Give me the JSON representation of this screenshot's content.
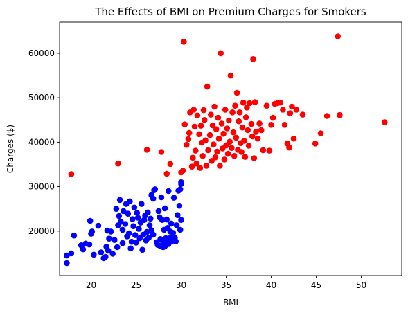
{
  "chart_data": {
    "type": "scatter",
    "title": "The Effects of BMI on Premium Charges for Smokers",
    "xlabel": "BMI",
    "ylabel": "Charges ($)",
    "xlim": [
      16.5,
      54.5
    ],
    "ylim": [
      10000,
      67000
    ],
    "grid": false,
    "colors": {
      "low_bmi": "#0000ff",
      "high_bmi": "#ff0000"
    },
    "x_ticks": [
      20,
      25,
      30,
      35,
      40,
      45,
      50
    ],
    "x_tick_labels": [
      "20",
      "25",
      "30",
      "35",
      "40",
      "45",
      "50"
    ],
    "y_ticks": [
      20000,
      30000,
      40000,
      50000,
      60000
    ],
    "y_tick_labels": [
      "20000",
      "30000",
      "40000",
      "50000",
      "60000"
    ],
    "series": [
      {
        "color": "#0000ff",
        "points": [
          [
            17.3,
            14500
          ],
          [
            17.3,
            12800
          ],
          [
            17.8,
            15000
          ],
          [
            18.1,
            19000
          ],
          [
            18.9,
            16800
          ],
          [
            19.1,
            15900
          ],
          [
            19.4,
            17200
          ],
          [
            19.8,
            17000
          ],
          [
            19.9,
            22300
          ],
          [
            20.0,
            19400
          ],
          [
            20.1,
            19900
          ],
          [
            20.3,
            14700
          ],
          [
            20.8,
            21200
          ],
          [
            21.1,
            15200
          ],
          [
            21.4,
            13900
          ],
          [
            21.6,
            14200
          ],
          [
            21.7,
            16500
          ],
          [
            21.8,
            20100
          ],
          [
            21.9,
            15600
          ],
          [
            22.0,
            18300
          ],
          [
            22.2,
            19900
          ],
          [
            22.4,
            14900
          ],
          [
            22.6,
            18000
          ],
          [
            22.8,
            25000
          ],
          [
            22.9,
            16400
          ],
          [
            23.0,
            21300
          ],
          [
            23.1,
            23400
          ],
          [
            23.2,
            27000
          ],
          [
            23.3,
            22100
          ],
          [
            23.5,
            20300
          ],
          [
            23.5,
            17300
          ],
          [
            23.6,
            24500
          ],
          [
            23.8,
            21600
          ],
          [
            23.9,
            26100
          ],
          [
            24.0,
            18800
          ],
          [
            24.1,
            23900
          ],
          [
            24.2,
            19500
          ],
          [
            24.3,
            26700
          ],
          [
            24.4,
            16100
          ],
          [
            24.5,
            17600
          ],
          [
            24.6,
            22700
          ],
          [
            24.7,
            21100
          ],
          [
            24.8,
            25300
          ],
          [
            24.9,
            19100
          ],
          [
            25.0,
            17400
          ],
          [
            25.1,
            24100
          ],
          [
            25.2,
            23000
          ],
          [
            25.3,
            20500
          ],
          [
            25.4,
            18400
          ],
          [
            25.5,
            21900
          ],
          [
            25.6,
            26100
          ],
          [
            25.7,
            15800
          ],
          [
            25.8,
            19200
          ],
          [
            25.9,
            22500
          ],
          [
            26.0,
            23500
          ],
          [
            26.1,
            17900
          ],
          [
            26.2,
            19800
          ],
          [
            26.3,
            24200
          ],
          [
            26.4,
            18500
          ],
          [
            26.5,
            21300
          ],
          [
            26.6,
            22800
          ],
          [
            26.7,
            20200
          ],
          [
            26.9,
            19200
          ],
          [
            26.7,
            28100
          ],
          [
            26.9,
            27300
          ],
          [
            27.0,
            29200
          ],
          [
            27.1,
            29400
          ],
          [
            27.3,
            17500
          ],
          [
            27.4,
            16900
          ],
          [
            27.5,
            24500
          ],
          [
            27.6,
            23100
          ],
          [
            27.7,
            18200
          ],
          [
            27.8,
            27600
          ],
          [
            27.9,
            22500
          ],
          [
            28.0,
            17300
          ],
          [
            28.1,
            20300
          ],
          [
            28.2,
            25100
          ],
          [
            28.3,
            18400
          ],
          [
            28.4,
            22600
          ],
          [
            28.5,
            20700
          ],
          [
            28.6,
            29000
          ],
          [
            28.7,
            17700
          ],
          [
            28.8,
            19900
          ],
          [
            28.9,
            21700
          ],
          [
            27.7,
            16600
          ],
          [
            28.0,
            16400
          ],
          [
            28.2,
            16600
          ],
          [
            28.4,
            17300
          ],
          [
            28.6,
            17100
          ],
          [
            28.8,
            18500
          ],
          [
            29.0,
            17800
          ],
          [
            29.1,
            19600
          ],
          [
            29.2,
            27500
          ],
          [
            29.3,
            18500
          ],
          [
            29.4,
            17700
          ],
          [
            29.5,
            21300
          ],
          [
            29.6,
            23600
          ],
          [
            29.7,
            29100
          ],
          [
            29.8,
            25700
          ],
          [
            29.9,
            29400
          ],
          [
            30.0,
            30600
          ],
          [
            30.0,
            22500
          ],
          [
            29.9,
            20300
          ],
          [
            30.0,
            31000
          ]
        ]
      },
      {
        "color": "#ff0000",
        "points": [
          [
            17.8,
            32800
          ],
          [
            23.0,
            35200
          ],
          [
            26.2,
            38300
          ],
          [
            27.8,
            37800
          ],
          [
            28.4,
            32900
          ],
          [
            28.8,
            35100
          ],
          [
            30.0,
            33200
          ],
          [
            30.2,
            33600
          ],
          [
            30.3,
            62600
          ],
          [
            30.4,
            44000
          ],
          [
            30.6,
            39400
          ],
          [
            30.8,
            40700
          ],
          [
            30.9,
            42100
          ],
          [
            31.0,
            46700
          ],
          [
            31.2,
            34500
          ],
          [
            31.3,
            36500
          ],
          [
            31.4,
            47300
          ],
          [
            31.5,
            43500
          ],
          [
            31.6,
            38100
          ],
          [
            31.7,
            35200
          ],
          [
            31.8,
            46000
          ],
          [
            32.0,
            41800
          ],
          [
            32.1,
            34200
          ],
          [
            32.2,
            43700
          ],
          [
            32.3,
            39900
          ],
          [
            32.4,
            36900
          ],
          [
            32.5,
            47200
          ],
          [
            32.6,
            45000
          ],
          [
            32.7,
            40400
          ],
          [
            32.8,
            34700
          ],
          [
            32.9,
            52500
          ],
          [
            33.0,
            38200
          ],
          [
            33.2,
            41600
          ],
          [
            33.3,
            46200
          ],
          [
            33.4,
            35800
          ],
          [
            33.5,
            43800
          ],
          [
            33.6,
            39500
          ],
          [
            33.7,
            48000
          ],
          [
            33.8,
            36600
          ],
          [
            33.9,
            42900
          ],
          [
            34.0,
            37900
          ],
          [
            34.1,
            45500
          ],
          [
            34.2,
            40800
          ],
          [
            34.3,
            34700
          ],
          [
            34.4,
            60000
          ],
          [
            34.5,
            44200
          ],
          [
            34.6,
            38600
          ],
          [
            34.7,
            41900
          ],
          [
            34.8,
            36100
          ],
          [
            34.9,
            47300
          ],
          [
            35.0,
            39300
          ],
          [
            35.1,
            43100
          ],
          [
            35.2,
            37400
          ],
          [
            35.3,
            44900
          ],
          [
            35.4,
            40100
          ],
          [
            35.5,
            55000
          ],
          [
            35.6,
            38700
          ],
          [
            35.7,
            46700
          ],
          [
            35.8,
            42200
          ],
          [
            35.9,
            36900
          ],
          [
            36.0,
            48200
          ],
          [
            36.1,
            41000
          ],
          [
            36.2,
            51100
          ],
          [
            36.3,
            38300
          ],
          [
            36.4,
            44700
          ],
          [
            36.5,
            46700
          ],
          [
            36.6,
            39800
          ],
          [
            36.7,
            37800
          ],
          [
            36.8,
            43300
          ],
          [
            36.9,
            48900
          ],
          [
            37.0,
            40300
          ],
          [
            37.1,
            36700
          ],
          [
            37.2,
            45600
          ],
          [
            37.3,
            47800
          ],
          [
            37.4,
            42700
          ],
          [
            37.5,
            39200
          ],
          [
            37.6,
            48800
          ],
          [
            37.8,
            44100
          ],
          [
            37.9,
            41300
          ],
          [
            38.0,
            58700
          ],
          [
            38.1,
            36400
          ],
          [
            38.2,
            49000
          ],
          [
            38.3,
            42300
          ],
          [
            38.5,
            40800
          ],
          [
            38.7,
            44200
          ],
          [
            38.9,
            42700
          ],
          [
            39.1,
            38200
          ],
          [
            39.5,
            48200
          ],
          [
            39.8,
            38100
          ],
          [
            40.0,
            43900
          ],
          [
            40.2,
            45500
          ],
          [
            40.4,
            48600
          ],
          [
            40.7,
            48800
          ],
          [
            41.0,
            48900
          ],
          [
            41.3,
            47300
          ],
          [
            41.5,
            43900
          ],
          [
            41.8,
            39700
          ],
          [
            42.0,
            38800
          ],
          [
            42.1,
            46500
          ],
          [
            42.3,
            48000
          ],
          [
            42.5,
            40800
          ],
          [
            42.8,
            47300
          ],
          [
            43.5,
            46200
          ],
          [
            44.9,
            39700
          ],
          [
            45.5,
            42000
          ],
          [
            46.2,
            45900
          ],
          [
            47.4,
            63800
          ],
          [
            47.6,
            46100
          ],
          [
            52.6,
            44500
          ]
        ]
      }
    ]
  }
}
